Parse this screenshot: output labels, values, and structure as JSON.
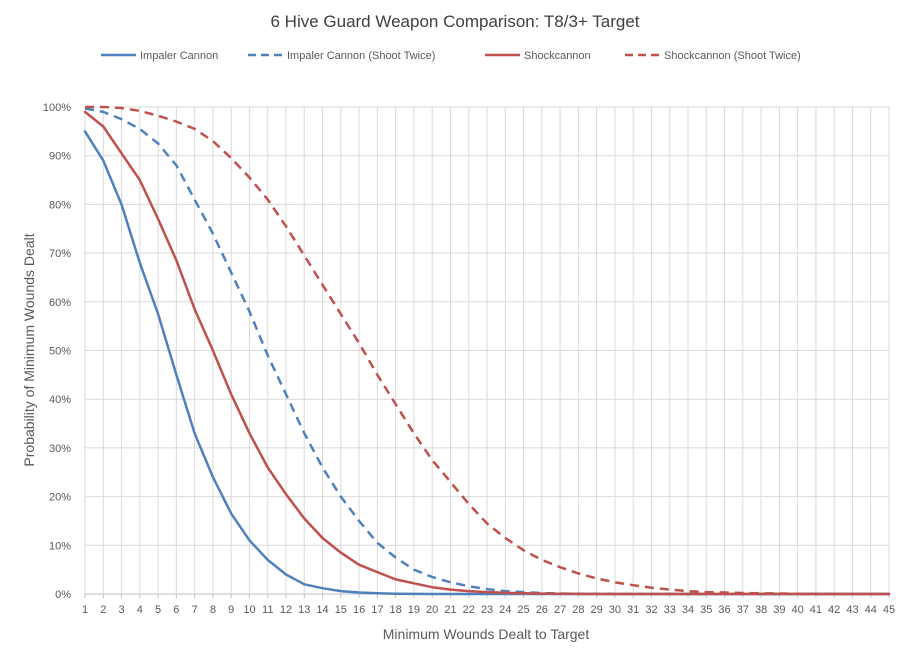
{
  "chart_data": {
    "type": "line",
    "title": "6 Hive Guard Weapon Comparison: T8/3+ Target",
    "xlabel": "Minimum Wounds Dealt  to Target",
    "ylabel": "Probability of Minimum Wounds Dealt",
    "x": [
      1,
      2,
      3,
      4,
      5,
      6,
      7,
      8,
      9,
      10,
      11,
      12,
      13,
      14,
      15,
      16,
      17,
      18,
      19,
      20,
      21,
      22,
      23,
      24,
      25,
      26,
      27,
      28,
      29,
      30,
      31,
      32,
      33,
      34,
      35,
      36,
      37,
      38,
      39,
      40,
      41,
      42,
      43,
      44,
      45
    ],
    "xlim": [
      1,
      45
    ],
    "ylim": [
      0,
      100
    ],
    "y_ticks": [
      "0%",
      "10%",
      "20%",
      "30%",
      "40%",
      "50%",
      "60%",
      "70%",
      "80%",
      "90%",
      "100%"
    ],
    "grid": true,
    "legend_position": "top",
    "series": [
      {
        "name": "Impaler Cannon",
        "color": "#4f81bd",
        "dashed": false,
        "values": [
          95.0,
          89.0,
          80.0,
          68.0,
          57.5,
          45.0,
          33.0,
          24.0,
          16.5,
          11.0,
          7.0,
          4.0,
          2.0,
          1.2,
          0.6,
          0.3,
          0.15,
          0.07,
          0.03,
          0.01,
          0,
          0,
          0,
          0,
          0,
          0,
          0,
          0,
          0,
          0,
          0,
          0,
          0,
          0,
          0,
          0,
          0,
          0,
          0,
          0,
          0,
          0,
          0,
          0,
          0
        ]
      },
      {
        "name": "Impaler Cannon (Shoot Twice)",
        "color": "#4f81bd",
        "dashed": true,
        "values": [
          99.7,
          99.0,
          97.5,
          95.5,
          92.5,
          88.0,
          81.0,
          74.0,
          66.0,
          58.0,
          49.0,
          41.0,
          33.0,
          26.0,
          20.0,
          15.0,
          10.5,
          7.5,
          5.0,
          3.5,
          2.4,
          1.6,
          1.0,
          0.6,
          0.4,
          0.2,
          0.1,
          0.05,
          0.02,
          0,
          0,
          0,
          0,
          0,
          0,
          0,
          0,
          0,
          0,
          0,
          0,
          0,
          0,
          0,
          0
        ]
      },
      {
        "name": "Shockcannon",
        "color": "#c0504d",
        "dashed": false,
        "values": [
          99.0,
          96.0,
          90.5,
          85.0,
          77.0,
          68.5,
          58.5,
          50.0,
          41.0,
          33.0,
          26.0,
          20.5,
          15.5,
          11.5,
          8.5,
          6.0,
          4.5,
          3.0,
          2.2,
          1.4,
          0.9,
          0.6,
          0.4,
          0.25,
          0.15,
          0.08,
          0.05,
          0.02,
          0.01,
          0,
          0,
          0,
          0,
          0,
          0,
          0,
          0,
          0,
          0,
          0,
          0,
          0,
          0,
          0,
          0
        ]
      },
      {
        "name": "Shockcannon (Shoot Twice)",
        "color": "#c0504d",
        "dashed": true,
        "values": [
          100,
          100,
          99.8,
          99.2,
          98.2,
          97.0,
          95.5,
          93.0,
          89.5,
          85.5,
          81.0,
          75.5,
          69.5,
          63.5,
          57.5,
          51.5,
          45.0,
          39.0,
          33.0,
          27.5,
          23.0,
          18.5,
          14.5,
          11.5,
          9.0,
          7.0,
          5.5,
          4.2,
          3.2,
          2.4,
          1.8,
          1.3,
          0.9,
          0.6,
          0.4,
          0.3,
          0.2,
          0.15,
          0.1,
          0.05,
          0.03,
          0.02,
          0.01,
          0,
          0
        ]
      }
    ]
  }
}
